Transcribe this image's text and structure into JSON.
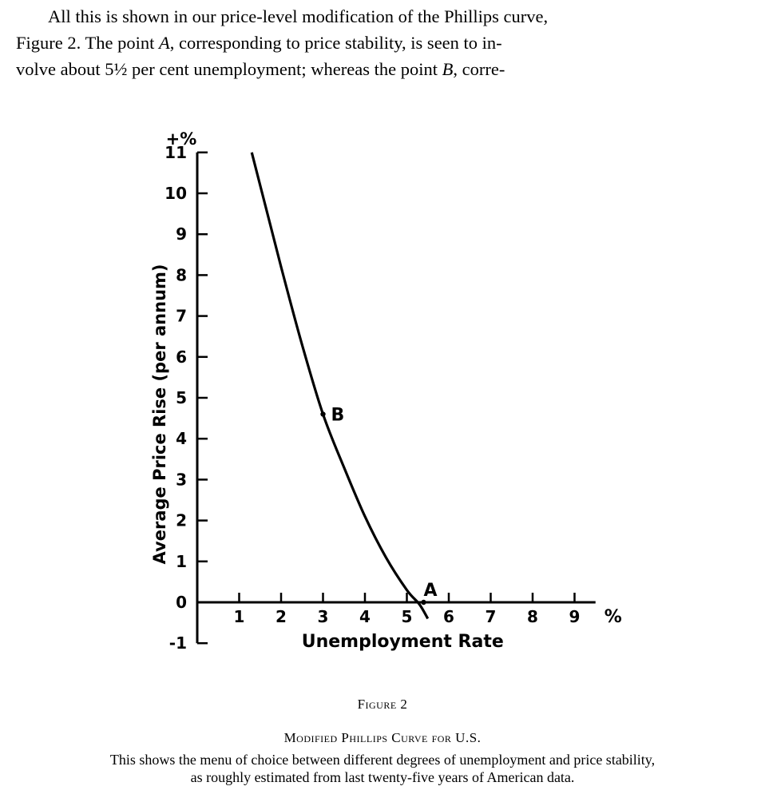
{
  "text": {
    "line1": "All this is shown in our price-level modification of the Phillips curve,",
    "line2_a": "Figure 2. The point ",
    "line2_b": "A",
    "line2_c": ", corresponding to price stability, is seen to in-",
    "line3_a": "volve about 5½ per cent unemployment; whereas the point ",
    "line3_b": "B",
    "line3_c": ", corre-"
  },
  "figure": {
    "number": "Figure 2",
    "title": "Modified Phillips Curve for U.S.",
    "description_line1": "This shows the menu of choice between different degrees of unemployment and price stability,",
    "description_line2": "as roughly estimated from last twenty-five years of American data."
  },
  "chart_data": {
    "type": "line",
    "xlabel": "Unemployment Rate",
    "ylabel": "Average Price Rise (per annum)",
    "x_unit_label": "%",
    "y_unit_label": "+%",
    "xlim": [
      0,
      9.5
    ],
    "ylim": [
      -1,
      11
    ],
    "x_ticks": [
      1,
      2,
      3,
      4,
      5,
      6,
      7,
      8,
      9
    ],
    "y_ticks": [
      -1,
      0,
      1,
      2,
      3,
      4,
      5,
      6,
      7,
      8,
      9,
      10,
      11
    ],
    "y_tick_labels": [
      "-1",
      "0",
      "1",
      "2",
      "3",
      "4",
      "5",
      "6",
      "7",
      "8",
      "9",
      "10",
      "11"
    ],
    "x_tick_labels": [
      "1",
      "2",
      "3",
      "4",
      "5",
      "6",
      "7",
      "8",
      "9"
    ],
    "grid": false,
    "series": [
      {
        "points": [
          [
            1.3,
            11.0
          ],
          [
            1.6,
            9.8
          ],
          [
            2.0,
            8.2
          ],
          [
            2.5,
            6.3
          ],
          [
            3.0,
            4.6
          ],
          [
            3.5,
            3.3
          ],
          [
            4.0,
            2.1
          ],
          [
            4.5,
            1.1
          ],
          [
            5.0,
            0.3
          ],
          [
            5.3,
            -0.05
          ],
          [
            5.5,
            -0.4
          ]
        ]
      }
    ],
    "annotations": [
      {
        "label": "A",
        "x": 5.4,
        "y": 0
      },
      {
        "label": "B",
        "x": 3.0,
        "y": 4.6
      }
    ]
  }
}
